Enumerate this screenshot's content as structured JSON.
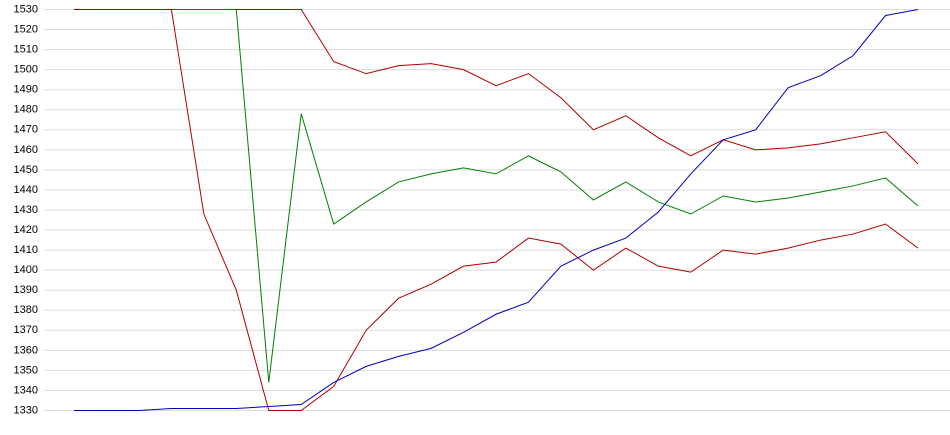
{
  "chart_data": {
    "type": "line",
    "categories": [
      null,
      null,
      null,
      null,
      null,
      null,
      null,
      null,
      null,
      null,
      null,
      null,
      null,
      null,
      null,
      null,
      null,
      null,
      null,
      null,
      null,
      null,
      null,
      null,
      null,
      null,
      null
    ],
    "series": [
      {
        "color": "#b00000",
        "values": [
          1530,
          1530,
          1530,
          1530,
          1530,
          1530,
          1530,
          1530,
          1504,
          1498,
          1502,
          1503,
          1500,
          1492,
          1498,
          1486,
          1470,
          1477,
          1466,
          1457,
          1465,
          1460,
          1461,
          1463,
          1466,
          1469,
          1453
        ]
      },
      {
        "color": "#008000",
        "values": [
          1530,
          1530,
          1530,
          1530,
          1530,
          1530,
          1344,
          1478,
          1423,
          1434,
          1444,
          1448,
          1451,
          1448,
          1457,
          1449,
          1435,
          1444,
          1434,
          1428,
          1437,
          1434,
          1436,
          1439,
          1442,
          1446,
          1432
        ]
      },
      {
        "color": "#b00000",
        "values": [
          1530,
          1530,
          1530,
          1530,
          1428,
          1390,
          1330,
          1330,
          1342,
          1370,
          1386,
          1393,
          1402,
          1404,
          1416,
          1413,
          1400,
          1411,
          1402,
          1399,
          1410,
          1408,
          1411,
          1415,
          1418,
          1423,
          1411
        ]
      },
      {
        "color": "#0000c0",
        "values": [
          1330,
          1330,
          1330,
          1331,
          1331,
          1331,
          1332,
          1333,
          1344,
          1352,
          1357,
          1361,
          1369,
          1378,
          1384,
          1402,
          1410,
          1416,
          1429,
          1448,
          1465,
          1470,
          1491,
          1497,
          1507,
          1527,
          1530
        ]
      }
    ],
    "ylim": [
      1330,
      1530
    ],
    "yticks": [
      1330,
      1340,
      1350,
      1360,
      1370,
      1380,
      1390,
      1400,
      1410,
      1420,
      1430,
      1440,
      1450,
      1460,
      1470,
      1480,
      1490,
      1500,
      1510,
      1520,
      1530
    ],
    "grid": true
  }
}
